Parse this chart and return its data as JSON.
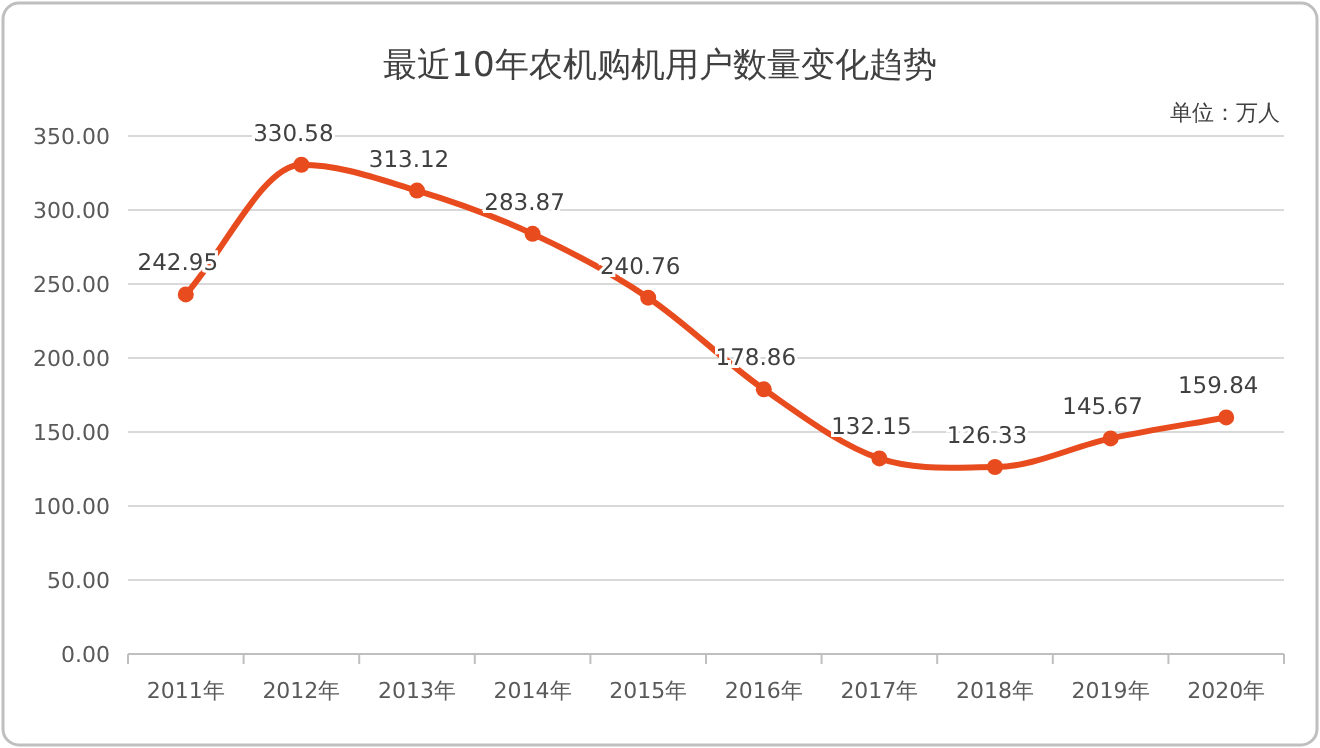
{
  "chart_data": {
    "type": "line",
    "title": "最近10年农机购机用户数量变化趋势",
    "annotations": [
      "单位：万人"
    ],
    "categories": [
      "2011年",
      "2012年",
      "2013年",
      "2014年",
      "2015年",
      "2016年",
      "2017年",
      "2018年",
      "2019年",
      "2020年"
    ],
    "series": [
      {
        "color": "#e84c1e",
        "values": [
          242.95,
          330.58,
          313.12,
          283.87,
          240.76,
          178.86,
          132.15,
          126.33,
          145.67,
          159.84
        ]
      }
    ],
    "ylim": [
      0,
      350
    ],
    "yticks": [
      {
        "value": 0,
        "label": "0.00"
      },
      {
        "value": 50,
        "label": "50.00"
      },
      {
        "value": 100,
        "label": "100.00"
      },
      {
        "value": 150,
        "label": "150.00"
      },
      {
        "value": 200,
        "label": "200.00"
      },
      {
        "value": 250,
        "label": "250.00"
      },
      {
        "value": 300,
        "label": "300.00"
      },
      {
        "value": 350,
        "label": "350.00"
      }
    ],
    "grid": "y",
    "marker": "circle",
    "line_style": "solid",
    "data_labels": true
  }
}
